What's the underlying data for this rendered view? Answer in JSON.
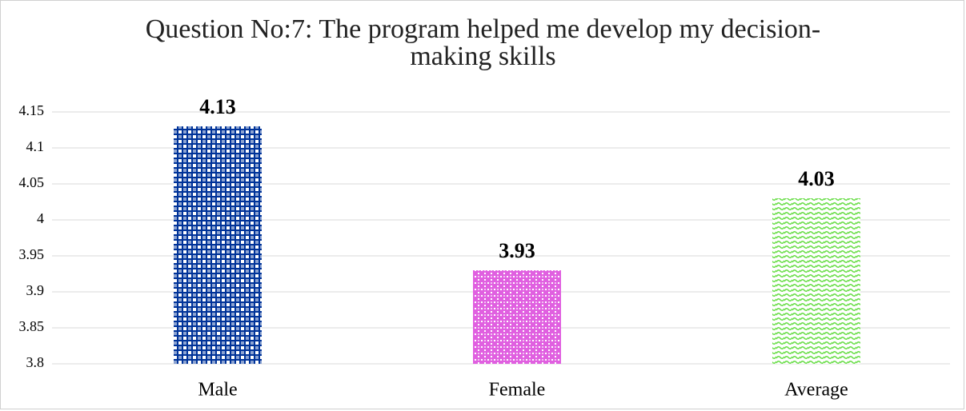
{
  "chart_data": {
    "type": "bar",
    "title": "Question No:7: The program helped me develop my decision-making skills",
    "categories": [
      "Male",
      "Female",
      "Average"
    ],
    "values": [
      4.13,
      3.93,
      4.03
    ],
    "colors": [
      "#003399",
      "#e060e0",
      "#66dd44"
    ],
    "ylim": [
      3.8,
      4.15
    ],
    "yticks": [
      3.8,
      3.85,
      3.9,
      3.95,
      4,
      4.05,
      4.1,
      4.15
    ],
    "grid": true
  }
}
